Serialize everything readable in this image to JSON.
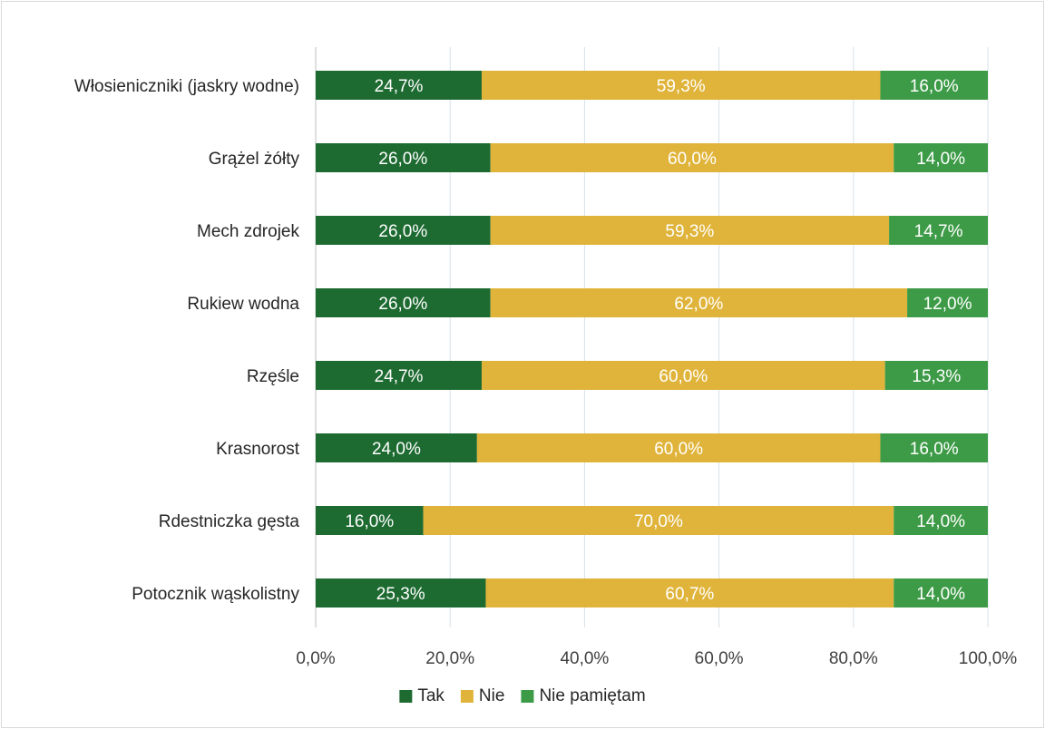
{
  "chart_data": {
    "type": "bar",
    "orientation": "horizontal",
    "stacked": true,
    "categories": [
      "Włosieniczniki (jaskry wodne)",
      "Grążel żółty",
      "Mech zdrojek",
      "Rukiew wodna",
      "Rzęśle",
      "Krasnorost",
      "Rdestniczka gęsta",
      "Potocznik wąskolistny"
    ],
    "series": [
      {
        "name": "Tak",
        "color": "#1e6b32",
        "values": [
          24.7,
          26.0,
          26.0,
          26.0,
          24.7,
          24.0,
          16.0,
          25.3
        ],
        "labels": [
          "24,7%",
          "26,0%",
          "26,0%",
          "26,0%",
          "24,7%",
          "24,0%",
          "16,0%",
          "25,3%"
        ]
      },
      {
        "name": "Nie",
        "color": "#e0b43a",
        "values": [
          59.3,
          60.0,
          59.3,
          62.0,
          60.0,
          60.0,
          70.0,
          60.7
        ],
        "labels": [
          "59,3%",
          "60,0%",
          "59,3%",
          "62,0%",
          "60,0%",
          "60,0%",
          "70,0%",
          "60,7%"
        ]
      },
      {
        "name": "Nie pamiętam",
        "color": "#3d9b47",
        "values": [
          16.0,
          14.0,
          14.7,
          12.0,
          15.3,
          16.0,
          14.0,
          14.0
        ],
        "labels": [
          "16,0%",
          "14,0%",
          "14,7%",
          "12,0%",
          "15,3%",
          "16,0%",
          "14,0%",
          "14,0%"
        ]
      }
    ],
    "xlim": [
      0,
      100
    ],
    "xticks": [
      0,
      20,
      40,
      60,
      80,
      100
    ],
    "xtick_labels": [
      "0,0%",
      "20,0%",
      "40,0%",
      "60,0%",
      "80,0%",
      "100,0%"
    ],
    "grid": true,
    "legend_position": "bottom",
    "title": "",
    "xlabel": "",
    "ylabel": ""
  }
}
